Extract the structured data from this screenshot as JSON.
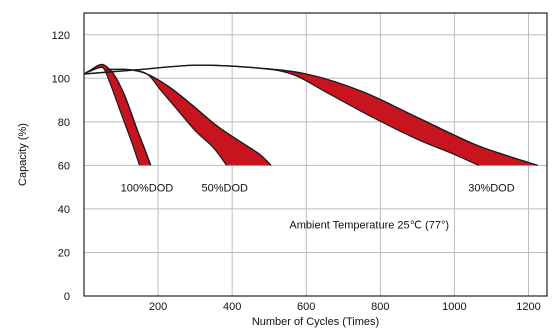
{
  "chart_data": {
    "type": "area",
    "xlabel": "Number of Cycles (Times)",
    "ylabel": "Capacity (%)",
    "xlim": [
      0,
      1250
    ],
    "ylim": [
      0,
      130
    ],
    "x_ticks": [
      200,
      400,
      600,
      800,
      1000,
      1200
    ],
    "y_ticks": [
      0,
      20,
      40,
      60,
      80,
      100,
      120
    ],
    "grid": true,
    "legend": "none",
    "colors": {
      "band": "#c8141e",
      "curve": "#1a1a1a",
      "grid": "#bdbdbd"
    },
    "series": [
      {
        "name": "100%DOD",
        "upper": [
          [
            0,
            102
          ],
          [
            20,
            104
          ],
          [
            40,
            106
          ],
          [
            55,
            106
          ],
          [
            80,
            102
          ],
          [
            110,
            92
          ],
          [
            140,
            78
          ],
          [
            165,
            67
          ],
          [
            180,
            60
          ]
        ],
        "lower": [
          [
            0,
            102
          ],
          [
            20,
            103.5
          ],
          [
            45,
            105
          ],
          [
            55,
            104
          ],
          [
            70,
            98
          ],
          [
            100,
            84
          ],
          [
            130,
            70
          ],
          [
            150,
            60
          ]
        ]
      },
      {
        "name": "50%DOD",
        "upper": [
          [
            60,
            104
          ],
          [
            120,
            104
          ],
          [
            170,
            102
          ],
          [
            230,
            96
          ],
          [
            290,
            88
          ],
          [
            360,
            78
          ],
          [
            430,
            70
          ],
          [
            475,
            65
          ],
          [
            505,
            60
          ]
        ],
        "lower": [
          [
            60,
            104
          ],
          [
            120,
            104
          ],
          [
            170,
            102
          ],
          [
            205,
            95
          ],
          [
            250,
            86
          ],
          [
            300,
            76
          ],
          [
            350,
            68
          ],
          [
            385,
            60
          ]
        ]
      },
      {
        "name": "30%DOD",
        "upper": [
          [
            0,
            102
          ],
          [
            150,
            104
          ],
          [
            300,
            106
          ],
          [
            450,
            105
          ],
          [
            600,
            102
          ],
          [
            750,
            94
          ],
          [
            900,
            82
          ],
          [
            1050,
            70
          ],
          [
            1150,
            64
          ],
          [
            1225,
            60
          ]
        ],
        "lower": [
          [
            0,
            102
          ],
          [
            150,
            104
          ],
          [
            300,
            106
          ],
          [
            450,
            105
          ],
          [
            560,
            102
          ],
          [
            660,
            93
          ],
          [
            780,
            82
          ],
          [
            900,
            72
          ],
          [
            1000,
            65
          ],
          [
            1065,
            60
          ]
        ]
      }
    ],
    "annotations": [
      {
        "text": "100%DOD",
        "x": 170,
        "y": 48
      },
      {
        "text": "50%DOD",
        "x": 380,
        "y": 48
      },
      {
        "text": "30%DOD",
        "x": 1100,
        "y": 48
      },
      {
        "text": "Ambient Temperature 25℃ (77°)",
        "x": 770,
        "y": 31
      }
    ]
  }
}
